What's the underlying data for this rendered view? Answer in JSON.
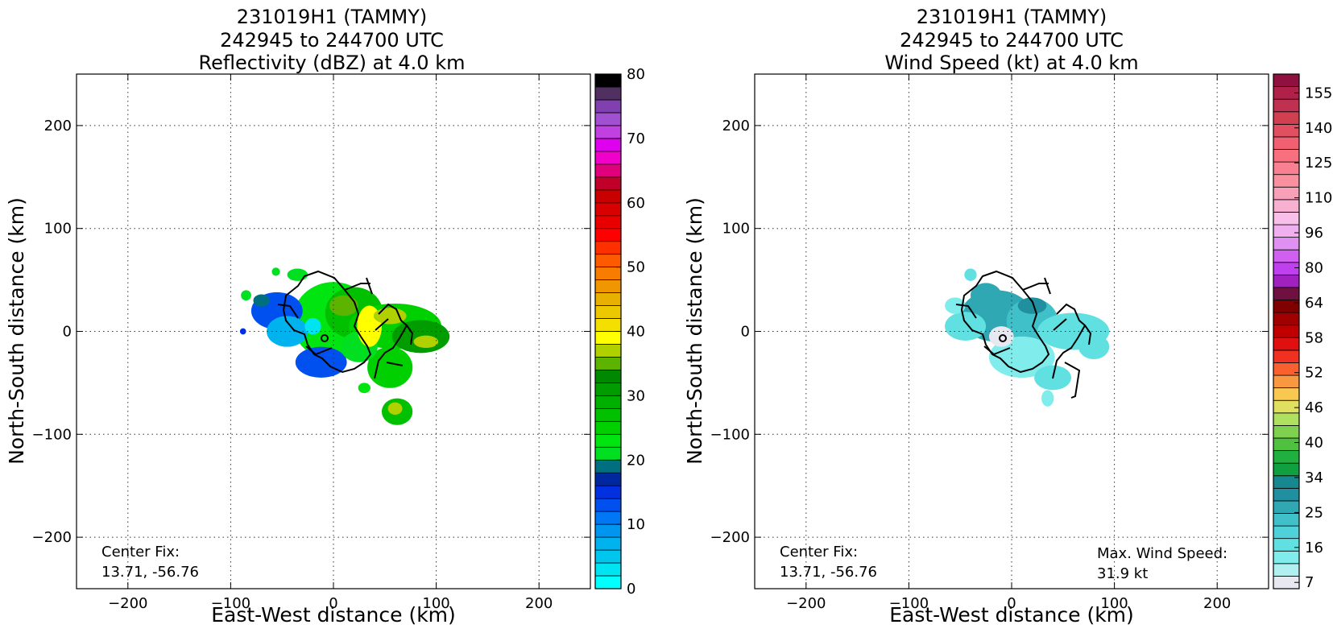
{
  "chart_data": [
    {
      "type": "heatmap",
      "title_lines": [
        "231019H1 (TAMMY)",
        "242945 to 244700 UTC",
        "Reflectivity (dBZ) at 4.0 km"
      ],
      "xlabel": "East-West distance (km)",
      "ylabel": "North-South distance (km)",
      "xlim": [
        -250,
        250
      ],
      "ylim": [
        -250,
        250
      ],
      "xticks": [
        -200,
        -100,
        0,
        100,
        200
      ],
      "yticks": [
        -200,
        -100,
        0,
        100,
        200
      ],
      "xtick_labels": [
        "−200",
        "−100",
        "0",
        "100",
        "200"
      ],
      "ytick_labels": [
        "−200",
        "−100",
        "0",
        "100",
        "200"
      ],
      "grid": true,
      "center": [
        -7,
        -7
      ],
      "colorbar": {
        "min": 0,
        "max": 80,
        "ticks": [
          0,
          10,
          20,
          30,
          40,
          50,
          60,
          70,
          80
        ],
        "tick_labels": [
          "0",
          "10",
          "20",
          "30",
          "40",
          "50",
          "60",
          "70",
          "80"
        ],
        "colors": [
          "#00ffff",
          "#00e4f2",
          "#00c6ee",
          "#00b2ee",
          "#0096f0",
          "#0078f5",
          "#0050f0",
          "#0030e0",
          "#00289e",
          "#007080",
          "#00e020",
          "#00e410",
          "#00d000",
          "#00c000",
          "#00b000",
          "#009c00",
          "#008800",
          "#5cb400",
          "#b0d000",
          "#ffff00",
          "#f4e000",
          "#ecc800",
          "#e8b000",
          "#f09600",
          "#f87c00",
          "#ff5a00",
          "#ff3000",
          "#ff0000",
          "#e80000",
          "#d80000",
          "#c80000",
          "#c00028",
          "#e0007c",
          "#f000c8",
          "#e000f0",
          "#c040e0",
          "#a050d0",
          "#8040b0",
          "#503060",
          "#000000"
        ]
      },
      "data_blobs": [
        {
          "x": 0,
          "y": 10,
          "rx": 40,
          "ry": 38,
          "value": 22
        },
        {
          "x": 20,
          "y": 18,
          "rx": 28,
          "ry": 25,
          "value": 26
        },
        {
          "x": 60,
          "y": 5,
          "rx": 45,
          "ry": 22,
          "value": 25
        },
        {
          "x": 85,
          "y": -5,
          "rx": 28,
          "ry": 16,
          "value": 30
        },
        {
          "x": 55,
          "y": -35,
          "rx": 22,
          "ry": 20,
          "value": 24
        },
        {
          "x": 62,
          "y": -78,
          "rx": 15,
          "ry": 13,
          "value": 27
        },
        {
          "x": -55,
          "y": 20,
          "rx": 25,
          "ry": 18,
          "value": 12
        },
        {
          "x": -45,
          "y": 0,
          "rx": 20,
          "ry": 15,
          "value": 6
        },
        {
          "x": -12,
          "y": -30,
          "rx": 25,
          "ry": 15,
          "value": 12
        },
        {
          "x": 25,
          "y": -15,
          "rx": 18,
          "ry": 15,
          "value": 21
        },
        {
          "x": 10,
          "y": 25,
          "rx": 14,
          "ry": 10,
          "value": 35
        },
        {
          "x": 35,
          "y": 5,
          "rx": 12,
          "ry": 20,
          "value": 38
        },
        {
          "x": 55,
          "y": 15,
          "rx": 16,
          "ry": 8,
          "value": 36
        },
        {
          "x": 90,
          "y": -10,
          "rx": 12,
          "ry": 6,
          "value": 37
        },
        {
          "x": 60,
          "y": -75,
          "rx": 7,
          "ry": 6,
          "value": 36
        },
        {
          "x": -20,
          "y": 5,
          "rx": 8,
          "ry": 8,
          "value": 3
        },
        {
          "x": -70,
          "y": 30,
          "rx": 8,
          "ry": 6,
          "value": 19
        },
        {
          "x": -85,
          "y": 35,
          "rx": 5,
          "ry": 5,
          "value": 20
        },
        {
          "x": -35,
          "y": 55,
          "rx": 10,
          "ry": 6,
          "value": 21
        },
        {
          "x": -56,
          "y": 58,
          "rx": 4,
          "ry": 4,
          "value": 20
        },
        {
          "x": -88,
          "y": 0,
          "rx": 3,
          "ry": 3,
          "value": 15
        },
        {
          "x": 30,
          "y": -55,
          "rx": 6,
          "ry": 5,
          "value": 22
        }
      ],
      "center_fix_label": "Center Fix:",
      "center_fix_value": "13.71, -56.76"
    },
    {
      "type": "heatmap",
      "title_lines": [
        "231019H1 (TAMMY)",
        "242945 to 244700 UTC",
        "Wind Speed (kt) at 4.0 km"
      ],
      "xlabel": "East-West distance (km)",
      "ylabel": "North-South distance (km)",
      "xlim": [
        -250,
        250
      ],
      "ylim": [
        -250,
        250
      ],
      "xticks": [
        -200,
        -100,
        0,
        100,
        200
      ],
      "yticks": [
        -200,
        -100,
        0,
        100,
        200
      ],
      "xtick_labels": [
        "−200",
        "−100",
        "0",
        "100",
        "200"
      ],
      "ytick_labels": [
        "−200",
        "−100",
        "0",
        "100",
        "200"
      ],
      "grid": true,
      "center": [
        -7,
        -7
      ],
      "colorbar": {
        "ticks": [
          7,
          16,
          25,
          34,
          40,
          46,
          52,
          58,
          64,
          80,
          96,
          110,
          125,
          140,
          155
        ],
        "tick_labels": [
          "7",
          "16",
          "25",
          "34",
          "40",
          "46",
          "52",
          "58",
          "64",
          "80",
          "96",
          "110",
          "125",
          "140",
          "155"
        ],
        "colors": [
          "#e8e8f0",
          "#b0f0f0",
          "#80ecec",
          "#60e0e0",
          "#50d0d8",
          "#40c0c8",
          "#30a8b4",
          "#2090a0",
          "#188890",
          "#10a040",
          "#20b040",
          "#50c040",
          "#80d050",
          "#b0e060",
          "#e0e060",
          "#f8c850",
          "#f89840",
          "#f86030",
          "#f03020",
          "#e01010",
          "#c00000",
          "#a00000",
          "#800000",
          "#701040",
          "#a020c0",
          "#c040f0",
          "#d060f0",
          "#e090f0",
          "#f0b0f0",
          "#f8c0e8",
          "#f8b0d0",
          "#f8a0b8",
          "#f890a0",
          "#f88090",
          "#f87080",
          "#f06070",
          "#e05060",
          "#d04050",
          "#c03050",
          "#b02048",
          "#901040"
        ]
      },
      "data_blobs": [
        {
          "x": -15,
          "y": 15,
          "rx": 35,
          "ry": 25,
          "value": 25
        },
        {
          "x": 20,
          "y": 10,
          "rx": 25,
          "ry": 22,
          "value": 24
        },
        {
          "x": 60,
          "y": 0,
          "rx": 35,
          "ry": 18,
          "value": 17
        },
        {
          "x": 10,
          "y": -25,
          "rx": 32,
          "ry": 20,
          "value": 12
        },
        {
          "x": 40,
          "y": -45,
          "rx": 18,
          "ry": 12,
          "value": 16
        },
        {
          "x": -45,
          "y": 5,
          "rx": 20,
          "ry": 14,
          "value": 16
        },
        {
          "x": -55,
          "y": 25,
          "rx": 10,
          "ry": 8,
          "value": 15
        },
        {
          "x": -25,
          "y": 35,
          "rx": 15,
          "ry": 12,
          "value": 27
        },
        {
          "x": 20,
          "y": 25,
          "rx": 14,
          "ry": 8,
          "value": 29
        },
        {
          "x": -10,
          "y": -5,
          "rx": 12,
          "ry": 10,
          "value": 8
        },
        {
          "x": 80,
          "y": -15,
          "rx": 15,
          "ry": 12,
          "value": 17
        },
        {
          "x": 35,
          "y": -65,
          "rx": 6,
          "ry": 8,
          "value": 15
        },
        {
          "x": -40,
          "y": 55,
          "rx": 6,
          "ry": 6,
          "value": 16
        }
      ],
      "center_fix_label": "Center Fix:",
      "center_fix_value": "13.71, -56.76",
      "max_wind_label": "Max. Wind Speed:",
      "max_wind_value": "31.9 kt"
    }
  ]
}
